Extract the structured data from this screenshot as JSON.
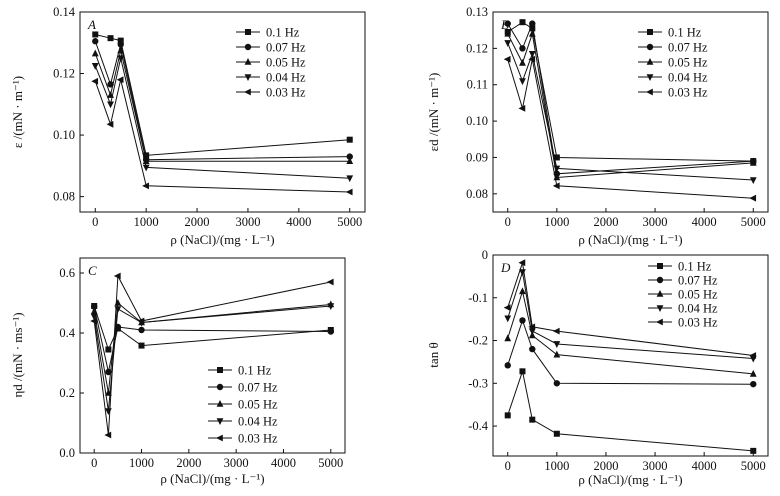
{
  "chart_data": [
    {
      "type": "line",
      "panel_label": "A",
      "xlabel": "ρ (NaCl)/(mg · L⁻¹)",
      "ylabel": "ε /(mN · m⁻¹)",
      "xlim": [
        -300,
        5300
      ],
      "ylim": [
        0.075,
        0.14
      ],
      "xticks": [
        0,
        1000,
        2000,
        3000,
        4000,
        5000
      ],
      "yticks": [
        0.08,
        0.1,
        0.12,
        0.14
      ],
      "ytick_labels": [
        "0.08",
        "0.10",
        "0.12",
        "0.14"
      ],
      "legend_position": "top-right",
      "x": [
        0,
        300,
        500,
        1000,
        5000
      ],
      "series": [
        {
          "name": "0.1 Hz",
          "marker": "square",
          "values": [
            0.1327,
            0.1315,
            0.1307,
            0.0934,
            0.0985
          ]
        },
        {
          "name": "0.07 Hz",
          "marker": "circle",
          "values": [
            0.1305,
            0.1165,
            0.1295,
            0.092,
            0.093
          ]
        },
        {
          "name": "0.05 Hz",
          "marker": "triangle-up",
          "values": [
            0.1265,
            0.113,
            0.1275,
            0.0915,
            0.0915
          ]
        },
        {
          "name": "0.04 Hz",
          "marker": "triangle-down",
          "values": [
            0.1225,
            0.11,
            0.125,
            0.0895,
            0.086
          ]
        },
        {
          "name": "0.03 Hz",
          "marker": "triangle-left",
          "values": [
            0.1175,
            0.1035,
            0.118,
            0.0835,
            0.0815
          ]
        }
      ]
    },
    {
      "type": "line",
      "panel_label": "B",
      "xlabel": "ρ (NaCl)/(mg · L⁻¹)",
      "ylabel": "εd /(mN · m⁻¹)",
      "xlim": [
        -300,
        5300
      ],
      "ylim": [
        0.075,
        0.13
      ],
      "xticks": [
        0,
        1000,
        2000,
        3000,
        4000,
        5000
      ],
      "yticks": [
        0.08,
        0.09,
        0.1,
        0.11,
        0.12,
        0.13
      ],
      "ytick_labels": [
        "0.08",
        "0.09",
        "0.10",
        "0.11",
        "0.12",
        "0.13"
      ],
      "legend_position": "top-right",
      "x": [
        0,
        300,
        500,
        1000,
        5000
      ],
      "series": [
        {
          "name": "0.1 Hz",
          "marker": "square",
          "values": [
            0.1245,
            0.1272,
            0.1255,
            0.09,
            0.089
          ]
        },
        {
          "name": "0.07 Hz",
          "marker": "circle",
          "values": [
            0.1268,
            0.12,
            0.1268,
            0.0855,
            0.089
          ]
        },
        {
          "name": "0.05 Hz",
          "marker": "triangle-up",
          "values": [
            0.124,
            0.116,
            0.124,
            0.0845,
            0.0885
          ]
        },
        {
          "name": "0.04 Hz",
          "marker": "triangle-down",
          "values": [
            0.1215,
            0.111,
            0.1185,
            0.087,
            0.0838
          ]
        },
        {
          "name": "0.03 Hz",
          "marker": "triangle-left",
          "values": [
            0.117,
            0.1035,
            0.117,
            0.0822,
            0.0788
          ]
        }
      ]
    },
    {
      "type": "line",
      "panel_label": "C",
      "xlabel": "ρ (NaCl)/(mg · L⁻¹)",
      "ylabel": "ηd /(mN · ms⁻¹)",
      "xlim": [
        -300,
        5300
      ],
      "ylim": [
        0.0,
        0.65
      ],
      "xticks": [
        0,
        1000,
        2000,
        3000,
        4000,
        5000
      ],
      "yticks": [
        0.0,
        0.2,
        0.4,
        0.6
      ],
      "ytick_labels": [
        "0.0",
        "0.2",
        "0.4",
        "0.6"
      ],
      "legend_position": "bottom-right",
      "x": [
        0,
        300,
        500,
        1000,
        5000
      ],
      "series": [
        {
          "name": "0.1 Hz",
          "marker": "square",
          "values": [
            0.49,
            0.345,
            0.415,
            0.358,
            0.41
          ]
        },
        {
          "name": "0.07 Hz",
          "marker": "circle",
          "values": [
            0.488,
            0.27,
            0.42,
            0.41,
            0.405
          ]
        },
        {
          "name": "0.05 Hz",
          "marker": "triangle-up",
          "values": [
            0.472,
            0.2,
            0.5,
            0.435,
            0.495
          ]
        },
        {
          "name": "0.04 Hz",
          "marker": "triangle-down",
          "values": [
            0.455,
            0.14,
            0.48,
            0.435,
            0.49
          ]
        },
        {
          "name": "0.03 Hz",
          "marker": "triangle-left",
          "values": [
            0.44,
            0.06,
            0.59,
            0.44,
            0.57
          ]
        }
      ]
    },
    {
      "type": "line",
      "panel_label": "D",
      "xlabel": "ρ (NaCl)/(mg · L⁻¹)",
      "ylabel": "tan θ",
      "xlim": [
        -300,
        5300
      ],
      "ylim": [
        -0.47,
        0.0
      ],
      "xticks": [
        0,
        1000,
        2000,
        3000,
        4000,
        5000
      ],
      "yticks": [
        -0.4,
        -0.3,
        -0.2,
        -0.1,
        0.0
      ],
      "ytick_labels": [
        "-0.4",
        "-0.3",
        "-0.2",
        "-0.1",
        "0"
      ],
      "legend_position": "top-right",
      "x": [
        0,
        300,
        500,
        1000,
        5000
      ],
      "series": [
        {
          "name": "0.1 Hz",
          "marker": "square",
          "values": [
            -0.375,
            -0.272,
            -0.385,
            -0.418,
            -0.458
          ]
        },
        {
          "name": "0.07 Hz",
          "marker": "circle",
          "values": [
            -0.258,
            -0.153,
            -0.22,
            -0.3,
            -0.302
          ]
        },
        {
          "name": "0.05 Hz",
          "marker": "triangle-up",
          "values": [
            -0.195,
            -0.085,
            -0.188,
            -0.233,
            -0.278
          ]
        },
        {
          "name": "0.04 Hz",
          "marker": "triangle-down",
          "values": [
            -0.148,
            -0.04,
            -0.178,
            -0.208,
            -0.242
          ]
        },
        {
          "name": "0.03 Hz",
          "marker": "triangle-left",
          "values": [
            -0.123,
            -0.018,
            -0.168,
            -0.178,
            -0.235
          ]
        }
      ]
    }
  ]
}
